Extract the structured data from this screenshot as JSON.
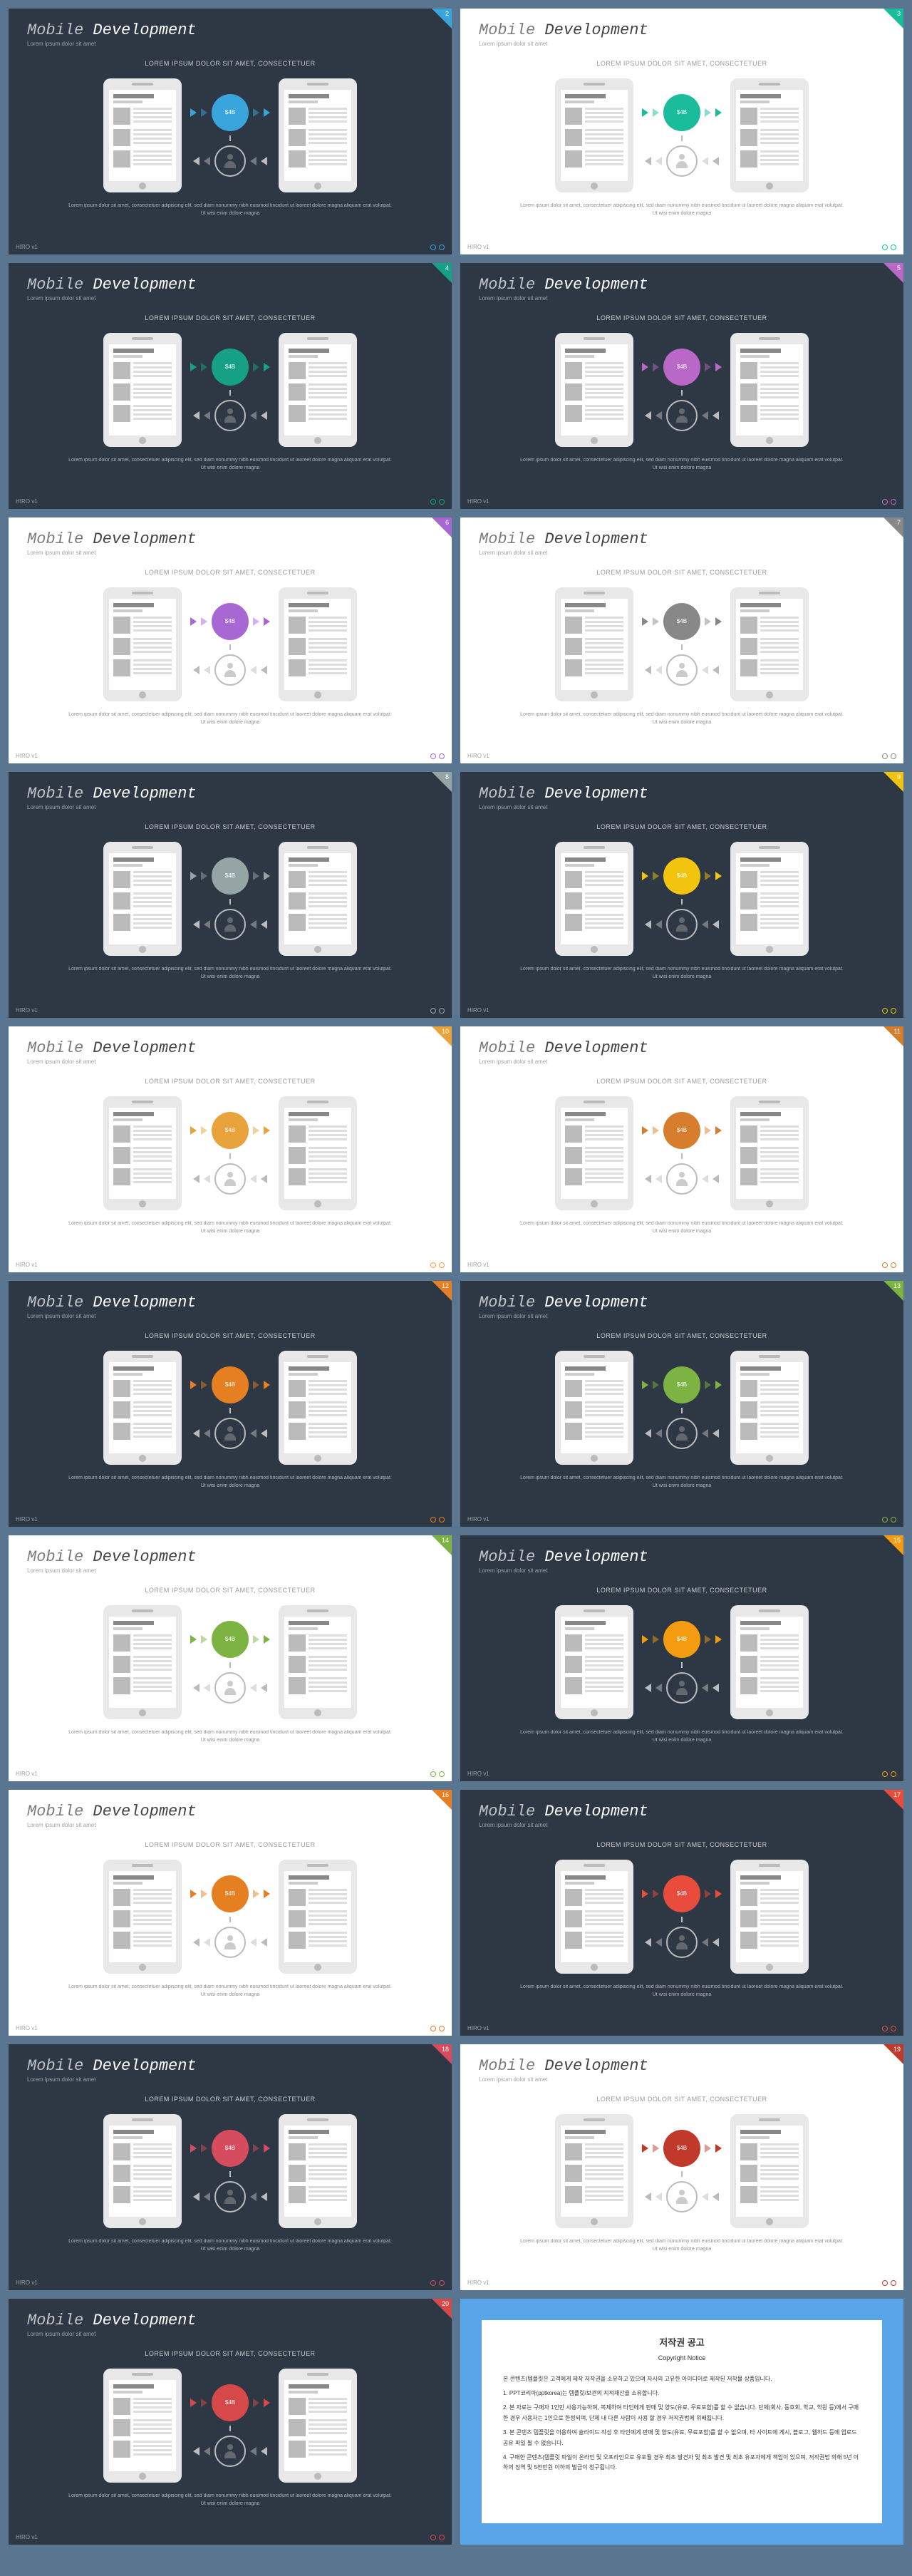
{
  "common": {
    "title_thin": "Mobile",
    "title_bold": "Development",
    "subtitle": "Lorem ipsum dolor sit amet",
    "lorem": "LOREM IPSUM DOLOR SIT AMET, CONSECTETUER",
    "body": "Lorem ipsum dolor sit amet, consectetuer adipiscing elit, sed diam nonummy nibh euismod tincidunt ut laoreet dolore magna aliquam erat volutpat. Ut wisi enim dolore magna",
    "circle_label": "$4B",
    "footer": "HIRO v1"
  },
  "slides": [
    {
      "num": "2",
      "bg": "dark",
      "accent": "#3aa5dd"
    },
    {
      "num": "3",
      "bg": "light",
      "accent": "#1abc9c"
    },
    {
      "num": "4",
      "bg": "dark",
      "accent": "#16a085"
    },
    {
      "num": "5",
      "bg": "dark",
      "accent": "#b968c7"
    },
    {
      "num": "6",
      "bg": "light",
      "accent": "#a868d4"
    },
    {
      "num": "7",
      "bg": "light",
      "accent": "#888888"
    },
    {
      "num": "8",
      "bg": "dark",
      "accent": "#95a5a6"
    },
    {
      "num": "9",
      "bg": "dark",
      "accent": "#f1c40f"
    },
    {
      "num": "10",
      "bg": "light",
      "accent": "#e8a33d"
    },
    {
      "num": "11",
      "bg": "light",
      "accent": "#d67e2e"
    },
    {
      "num": "12",
      "bg": "dark",
      "accent": "#e67e22"
    },
    {
      "num": "13",
      "bg": "dark",
      "accent": "#7cb342"
    },
    {
      "num": "14",
      "bg": "light",
      "accent": "#7cb342"
    },
    {
      "num": "15",
      "bg": "dark",
      "accent": "#f39c12"
    },
    {
      "num": "16",
      "bg": "light",
      "accent": "#e67e22"
    },
    {
      "num": "17",
      "bg": "dark",
      "accent": "#e74c3c"
    },
    {
      "num": "18",
      "bg": "dark",
      "accent": "#d64c5f"
    },
    {
      "num": "19",
      "bg": "light",
      "accent": "#c0392b"
    },
    {
      "num": "20",
      "bg": "dark",
      "accent": "#d6494a"
    }
  ],
  "copyright": {
    "title": "저작권 공고",
    "subtitle": "Copyright Notice",
    "p1": "본 콘텐츠(템플릿은 고객에게 제작 저작권을 소유하고 있으며 자사의 고유한 아이디어로 제작된 저작물 상품입니다.",
    "p2": "1. PPT코리아(pptkorea)는 템플릿/보관의 지적재산을 소유합니다.",
    "p3": "2. 본 자료는 구매자 1인만 사용가능하며, 복제하여 타인에게 판매 및 양도(유료, 무료포함)를 할 수 없습니다. 단체(회사, 동호회, 학교, 학원 등)에서 구매한 경우 사용자는 1인으로 한정되며, 단체 내 다른 사람이 사용 할 경우 저작권법에 위배됩니다.",
    "p4": "3. 본 콘텐츠 템플릿을 이용하여 슬라이드 작성 후 타인에게 판매 및 양도(유료, 무료포함)를 할 수 없으며, 타 사이트에 게시, 블로그, 웹하드 등에 업로드 공유 파일 될 수 없습니다.",
    "p5": "4. 구매한 콘텐츠(템플릿 파일이 온라인 및 오프라인으로 유포될 경우 최초 발견자 및 최초 발견 및 최초 유포자에게 책임이 있으며, 저작권법 의해 5년 이하의 징역 및 5천만원 이하의 벌금이 청구됩니다."
  }
}
